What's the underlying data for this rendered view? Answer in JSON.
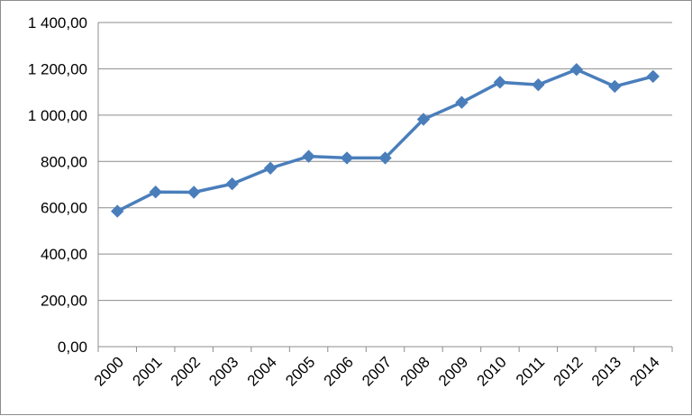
{
  "chart_data": {
    "type": "line",
    "title": "",
    "xlabel": "",
    "ylabel": "",
    "categories": [
      "2000",
      "2001",
      "2002",
      "2003",
      "2004",
      "2005",
      "2006",
      "2007",
      "2008",
      "2009",
      "2010",
      "2011",
      "2012",
      "2013",
      "2014"
    ],
    "series": [
      {
        "values": [
          585,
          668,
          667,
          703,
          771,
          822,
          815,
          815,
          982,
          1055,
          1142,
          1131,
          1197,
          1124,
          1167
        ],
        "color": "#4a7ebb",
        "marker": "diamond"
      }
    ],
    "ylim": [
      0,
      1400
    ],
    "yticks": [
      0,
      200,
      400,
      600,
      800,
      1000,
      1200,
      1400
    ],
    "ytick_labels": [
      "0,00",
      "200,00",
      "400,00",
      "600,00",
      "800,00",
      "1 000,00",
      "1 200,00",
      "1 400,00"
    ],
    "grid": true,
    "gridline_color": "#8c8c8c",
    "legend": "none"
  }
}
